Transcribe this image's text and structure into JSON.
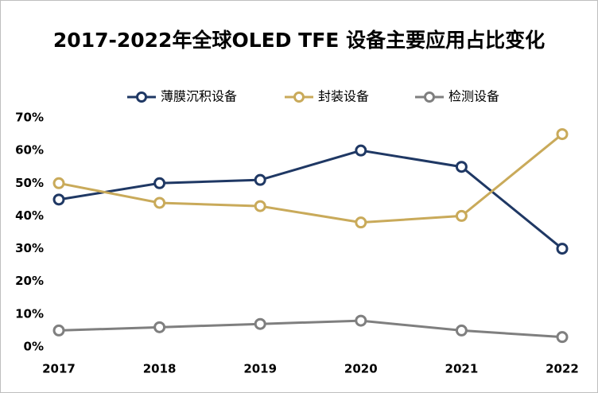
{
  "chart_data": {
    "type": "line",
    "title": "2017-2022年全球OLED TFE 设备主要应用占比变化",
    "categories": [
      "2017",
      "2018",
      "2019",
      "2020",
      "2021",
      "2022"
    ],
    "series": [
      {
        "name": "薄膜沉积设备",
        "color": "#1f3864",
        "values": [
          45,
          50,
          51,
          60,
          55,
          30
        ]
      },
      {
        "name": "封装设备",
        "color": "#c9aa5a",
        "values": [
          50,
          44,
          43,
          38,
          40,
          65
        ]
      },
      {
        "name": "检测设备",
        "color": "#7f7f7f",
        "values": [
          5,
          6,
          7,
          8,
          5,
          3
        ]
      }
    ],
    "ylim": [
      0,
      70
    ],
    "yticks": [
      {
        "value": 0,
        "label": "0%"
      },
      {
        "value": 10,
        "label": "10%"
      },
      {
        "value": 20,
        "label": "20%"
      },
      {
        "value": 30,
        "label": "30%"
      },
      {
        "value": 40,
        "label": "40%"
      },
      {
        "value": 50,
        "label": "50%"
      },
      {
        "value": 60,
        "label": "60%"
      },
      {
        "value": 70,
        "label": "70%"
      }
    ],
    "grid": false,
    "legend": "top"
  }
}
